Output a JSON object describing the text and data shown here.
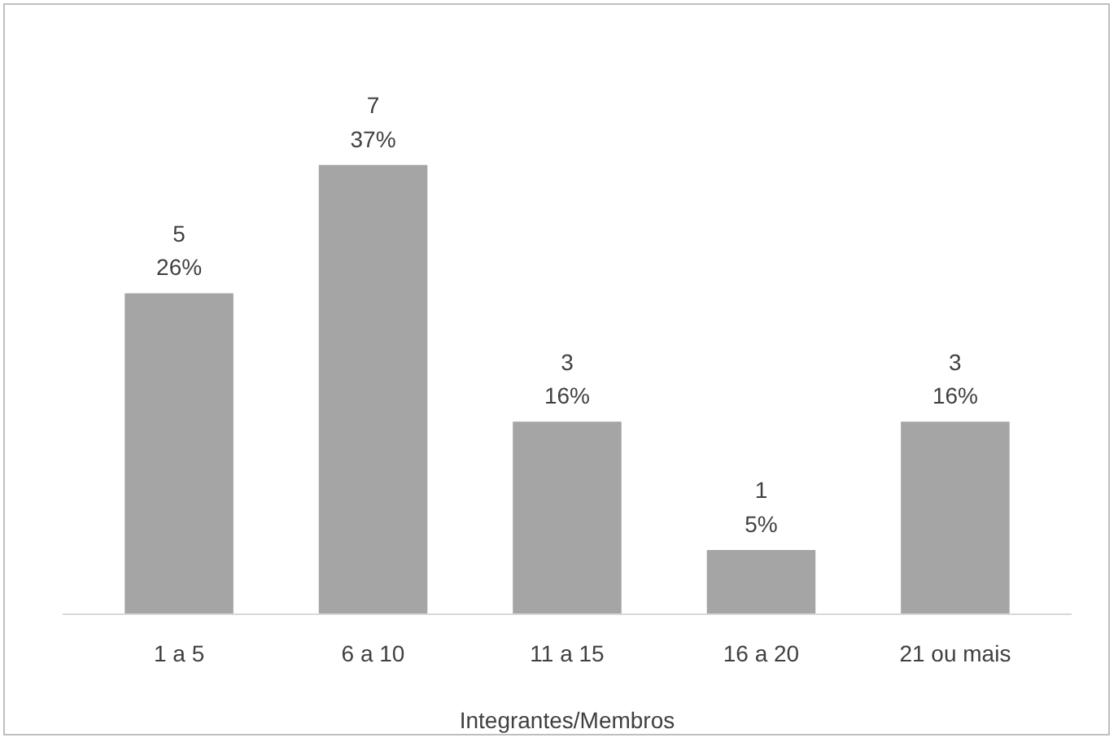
{
  "chart_data": {
    "type": "bar",
    "xlabel": "Integrantes/Membros",
    "categories": [
      "1 a 5",
      "6 a 10",
      "11 a 15",
      "16 a 20",
      "21 ou mais"
    ],
    "values": [
      5,
      7,
      3,
      1,
      3
    ],
    "color": "#a5a5a5",
    "value_labels": [
      "5\n26%",
      "7\n37%",
      "3\n16%",
      "1\n5%",
      "3\n16%"
    ],
    "grid": false
  }
}
